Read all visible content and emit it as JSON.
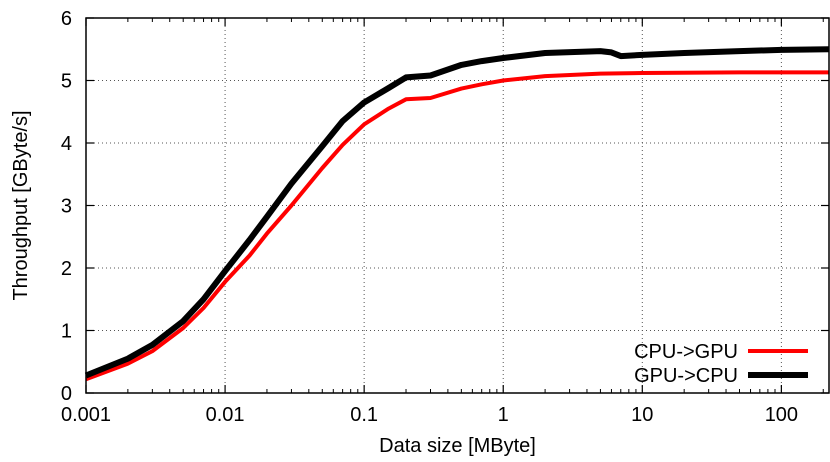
{
  "chart_data": {
    "type": "line",
    "xlabel": "Data size [MByte]",
    "ylabel": "Throughput [GByte/s]",
    "x_scale": "log",
    "xlim": [
      0.001,
      220
    ],
    "ylim": [
      0,
      6
    ],
    "x_ticks": [
      {
        "value": 0.001,
        "label": "0.001"
      },
      {
        "value": 0.01,
        "label": "0.01"
      },
      {
        "value": 0.1,
        "label": "0.1"
      },
      {
        "value": 1,
        "label": "1"
      },
      {
        "value": 10,
        "label": "10"
      },
      {
        "value": 100,
        "label": "100"
      }
    ],
    "y_ticks": [
      {
        "value": 0,
        "label": "0"
      },
      {
        "value": 1,
        "label": "1"
      },
      {
        "value": 2,
        "label": "2"
      },
      {
        "value": 3,
        "label": "3"
      },
      {
        "value": 4,
        "label": "4"
      },
      {
        "value": 5,
        "label": "5"
      },
      {
        "value": 6,
        "label": "6"
      }
    ],
    "grid": true,
    "legend_position": "bottom-right",
    "series": [
      {
        "name": "CPU->GPU",
        "color": "#ff0000",
        "x": [
          0.001,
          0.002,
          0.003,
          0.005,
          0.007,
          0.01,
          0.015,
          0.02,
          0.03,
          0.05,
          0.07,
          0.1,
          0.15,
          0.2,
          0.3,
          0.5,
          0.7,
          1,
          2,
          5,
          10,
          50,
          100,
          220
        ],
        "y": [
          0.22,
          0.47,
          0.67,
          1.04,
          1.36,
          1.78,
          2.2,
          2.55,
          3.0,
          3.6,
          3.97,
          4.3,
          4.55,
          4.7,
          4.72,
          4.87,
          4.94,
          5.0,
          5.07,
          5.11,
          5.12,
          5.13,
          5.13,
          5.13
        ]
      },
      {
        "name": "GPU->CPU",
        "color": "#000000",
        "x": [
          0.001,
          0.002,
          0.003,
          0.005,
          0.007,
          0.01,
          0.015,
          0.02,
          0.03,
          0.05,
          0.07,
          0.1,
          0.15,
          0.2,
          0.3,
          0.5,
          0.7,
          1,
          2,
          5,
          6,
          7,
          10,
          20,
          50,
          100,
          220
        ],
        "y": [
          0.28,
          0.55,
          0.77,
          1.15,
          1.5,
          1.95,
          2.45,
          2.82,
          3.35,
          3.95,
          4.35,
          4.65,
          4.88,
          5.05,
          5.08,
          5.25,
          5.31,
          5.36,
          5.44,
          5.47,
          5.45,
          5.39,
          5.41,
          5.44,
          5.47,
          5.49,
          5.5
        ]
      }
    ]
  }
}
